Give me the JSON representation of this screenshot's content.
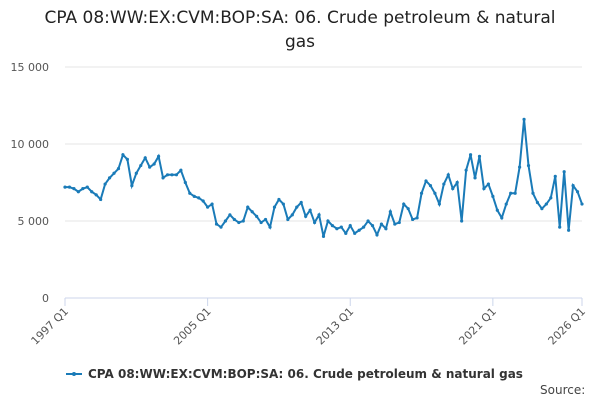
{
  "chart_data": {
    "type": "line",
    "title": "CPA 08:WW:EX:CVM:BOP:SA: 06. Crude petroleum & natural gas",
    "categories": [
      "1997 Q1",
      null,
      null,
      null,
      null,
      null,
      null,
      null,
      null,
      null,
      null,
      null,
      null,
      null,
      null,
      null,
      null,
      null,
      null,
      null,
      null,
      null,
      null,
      null,
      null,
      null,
      null,
      null,
      null,
      null,
      null,
      null,
      "2005 Q1",
      null,
      null,
      null,
      null,
      null,
      null,
      null,
      null,
      null,
      null,
      null,
      null,
      null,
      null,
      null,
      null,
      null,
      null,
      null,
      null,
      null,
      null,
      null,
      null,
      null,
      null,
      null,
      null,
      null,
      null,
      null,
      "2013 Q1",
      null,
      null,
      null,
      null,
      null,
      null,
      null,
      null,
      null,
      null,
      null,
      null,
      null,
      null,
      null,
      null,
      null,
      null,
      null,
      null,
      null,
      null,
      null,
      null,
      null,
      null,
      null,
      null,
      null,
      null,
      null,
      "2021 Q1",
      null,
      null,
      null,
      null,
      null,
      null,
      null,
      null,
      null,
      null,
      null,
      null,
      null,
      null,
      null,
      null,
      null,
      null,
      null,
      "2026 Q1"
    ],
    "series": [
      {
        "name": "CPA 08:WW:EX:CVM:BOP:SA: 06. Crude petroleum & natural gas",
        "color": "#1a7bb8",
        "values": [
          7200,
          7200,
          7100,
          6900,
          7100,
          7200,
          6900,
          6700,
          6400,
          7400,
          7800,
          8100,
          8400,
          9300,
          9000,
          7300,
          8100,
          8600,
          9100,
          8500,
          8700,
          9200,
          7800,
          8000,
          8000,
          8000,
          8300,
          7500,
          6800,
          6600,
          6500,
          6300,
          5900,
          6100,
          4800,
          4600,
          5000,
          5400,
          5100,
          4900,
          5000,
          5900,
          5600,
          5300,
          4900,
          5100,
          4600,
          5900,
          6400,
          6100,
          5100,
          5400,
          5900,
          6200,
          5300,
          5700,
          4900,
          5400,
          4000,
          5000,
          4700,
          4500,
          4600,
          4200,
          4700,
          4200,
          4400,
          4600,
          5000,
          4700,
          4100,
          4800,
          4500,
          5600,
          4800,
          4900,
          6100,
          5800,
          5100,
          5200,
          6800,
          7600,
          7300,
          6800,
          6100,
          7400,
          8000,
          7100,
          7500,
          5000,
          8300,
          9300,
          7800,
          9200,
          7100,
          7400,
          6600,
          5700,
          5200,
          6100,
          6800,
          6800,
          8500,
          11600,
          8600,
          6800,
          6200,
          5800,
          6100,
          6500,
          7900,
          4600,
          8200,
          4400,
          7300,
          6900,
          6100
        ]
      }
    ],
    "ylim": [
      0,
      15000
    ],
    "yticks": [
      0,
      {
        "value": 5000,
        "label": "5 000"
      },
      {
        "value": 10000,
        "label": "10 000"
      },
      {
        "value": 15000,
        "label": "15 000"
      }
    ],
    "grid": true,
    "source_label": "Source:"
  }
}
